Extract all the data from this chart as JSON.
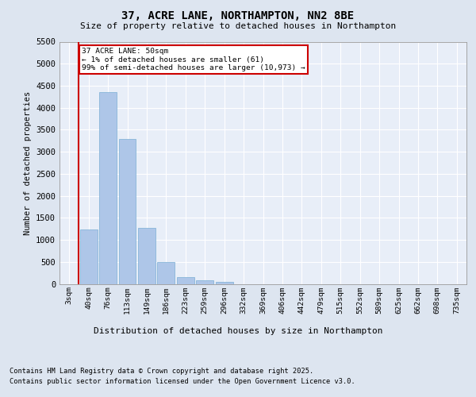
{
  "title": "37, ACRE LANE, NORTHAMPTON, NN2 8BE",
  "subtitle": "Size of property relative to detached houses in Northampton",
  "xlabel": "Distribution of detached houses by size in Northampton",
  "ylabel": "Number of detached properties",
  "annotation_title": "37 ACRE LANE: 50sqm",
  "annotation_line1": "← 1% of detached houses are smaller (61)",
  "annotation_line2": "99% of semi-detached houses are larger (10,973) →",
  "footer_line1": "Contains HM Land Registry data © Crown copyright and database right 2025.",
  "footer_line2": "Contains public sector information licensed under the Open Government Licence v3.0.",
  "bar_color": "#aec6e8",
  "bar_edge_color": "#7aafd4",
  "annotation_box_color": "#cc0000",
  "vertical_line_color": "#cc0000",
  "background_color": "#dde5f0",
  "plot_bg_color": "#e8eef8",
  "grid_color": "#ffffff",
  "categories": [
    "3sqm",
    "40sqm",
    "76sqm",
    "113sqm",
    "149sqm",
    "186sqm",
    "223sqm",
    "259sqm",
    "296sqm",
    "332sqm",
    "369sqm",
    "406sqm",
    "442sqm",
    "479sqm",
    "515sqm",
    "552sqm",
    "589sqm",
    "625sqm",
    "662sqm",
    "698sqm",
    "735sqm"
  ],
  "values": [
    0,
    1230,
    4350,
    3300,
    1270,
    500,
    150,
    80,
    50,
    0,
    0,
    0,
    0,
    0,
    0,
    0,
    0,
    0,
    0,
    0,
    0
  ],
  "ylim": [
    0,
    5500
  ],
  "yticks": [
    0,
    500,
    1000,
    1500,
    2000,
    2500,
    3000,
    3500,
    4000,
    4500,
    5000,
    5500
  ],
  "property_size": 50,
  "vertical_line_x": 0.5
}
